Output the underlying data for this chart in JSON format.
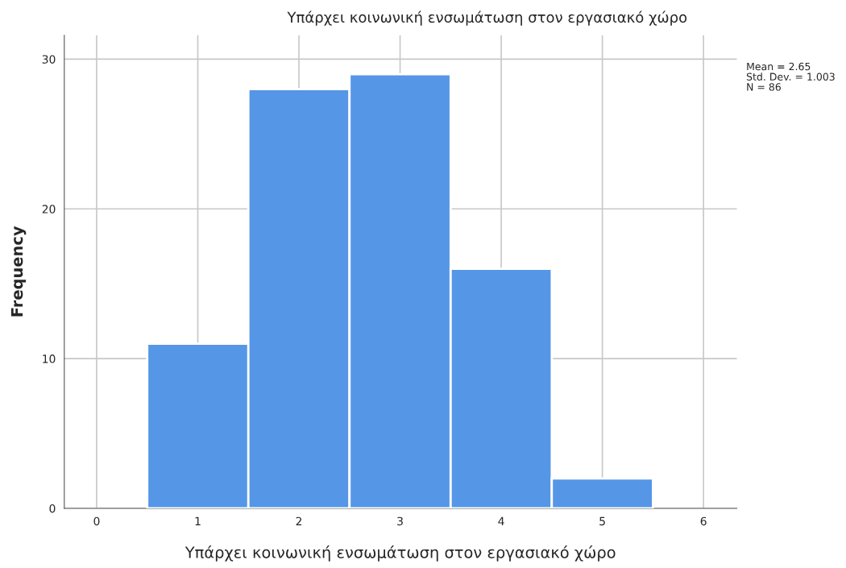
{
  "chart_data": {
    "type": "histogram",
    "title": "Υπάρχει κοινωνική ενσωμάτωση στον εργασιακό χώρο",
    "xlabel": "Υπάρχει κοινωνική ενσωμάτωση στον εργασιακό χώρο",
    "ylabel": "Frequency",
    "bins": [
      0.5,
      1.5,
      2.5,
      3.5,
      4.5,
      5.5
    ],
    "values": [
      11,
      28,
      29,
      16,
      2
    ],
    "color": "#5596e6",
    "xlim": [
      -0.32,
      6.33
    ],
    "xticks": [
      0,
      1,
      2,
      3,
      4,
      5,
      6
    ],
    "ylim": [
      0,
      31.6
    ],
    "yticks": [
      0,
      10,
      20,
      30
    ],
    "grid": true,
    "annotations": [
      "Mean = 2.65",
      "Std. Dev. = 1.003",
      "N = 86"
    ]
  }
}
